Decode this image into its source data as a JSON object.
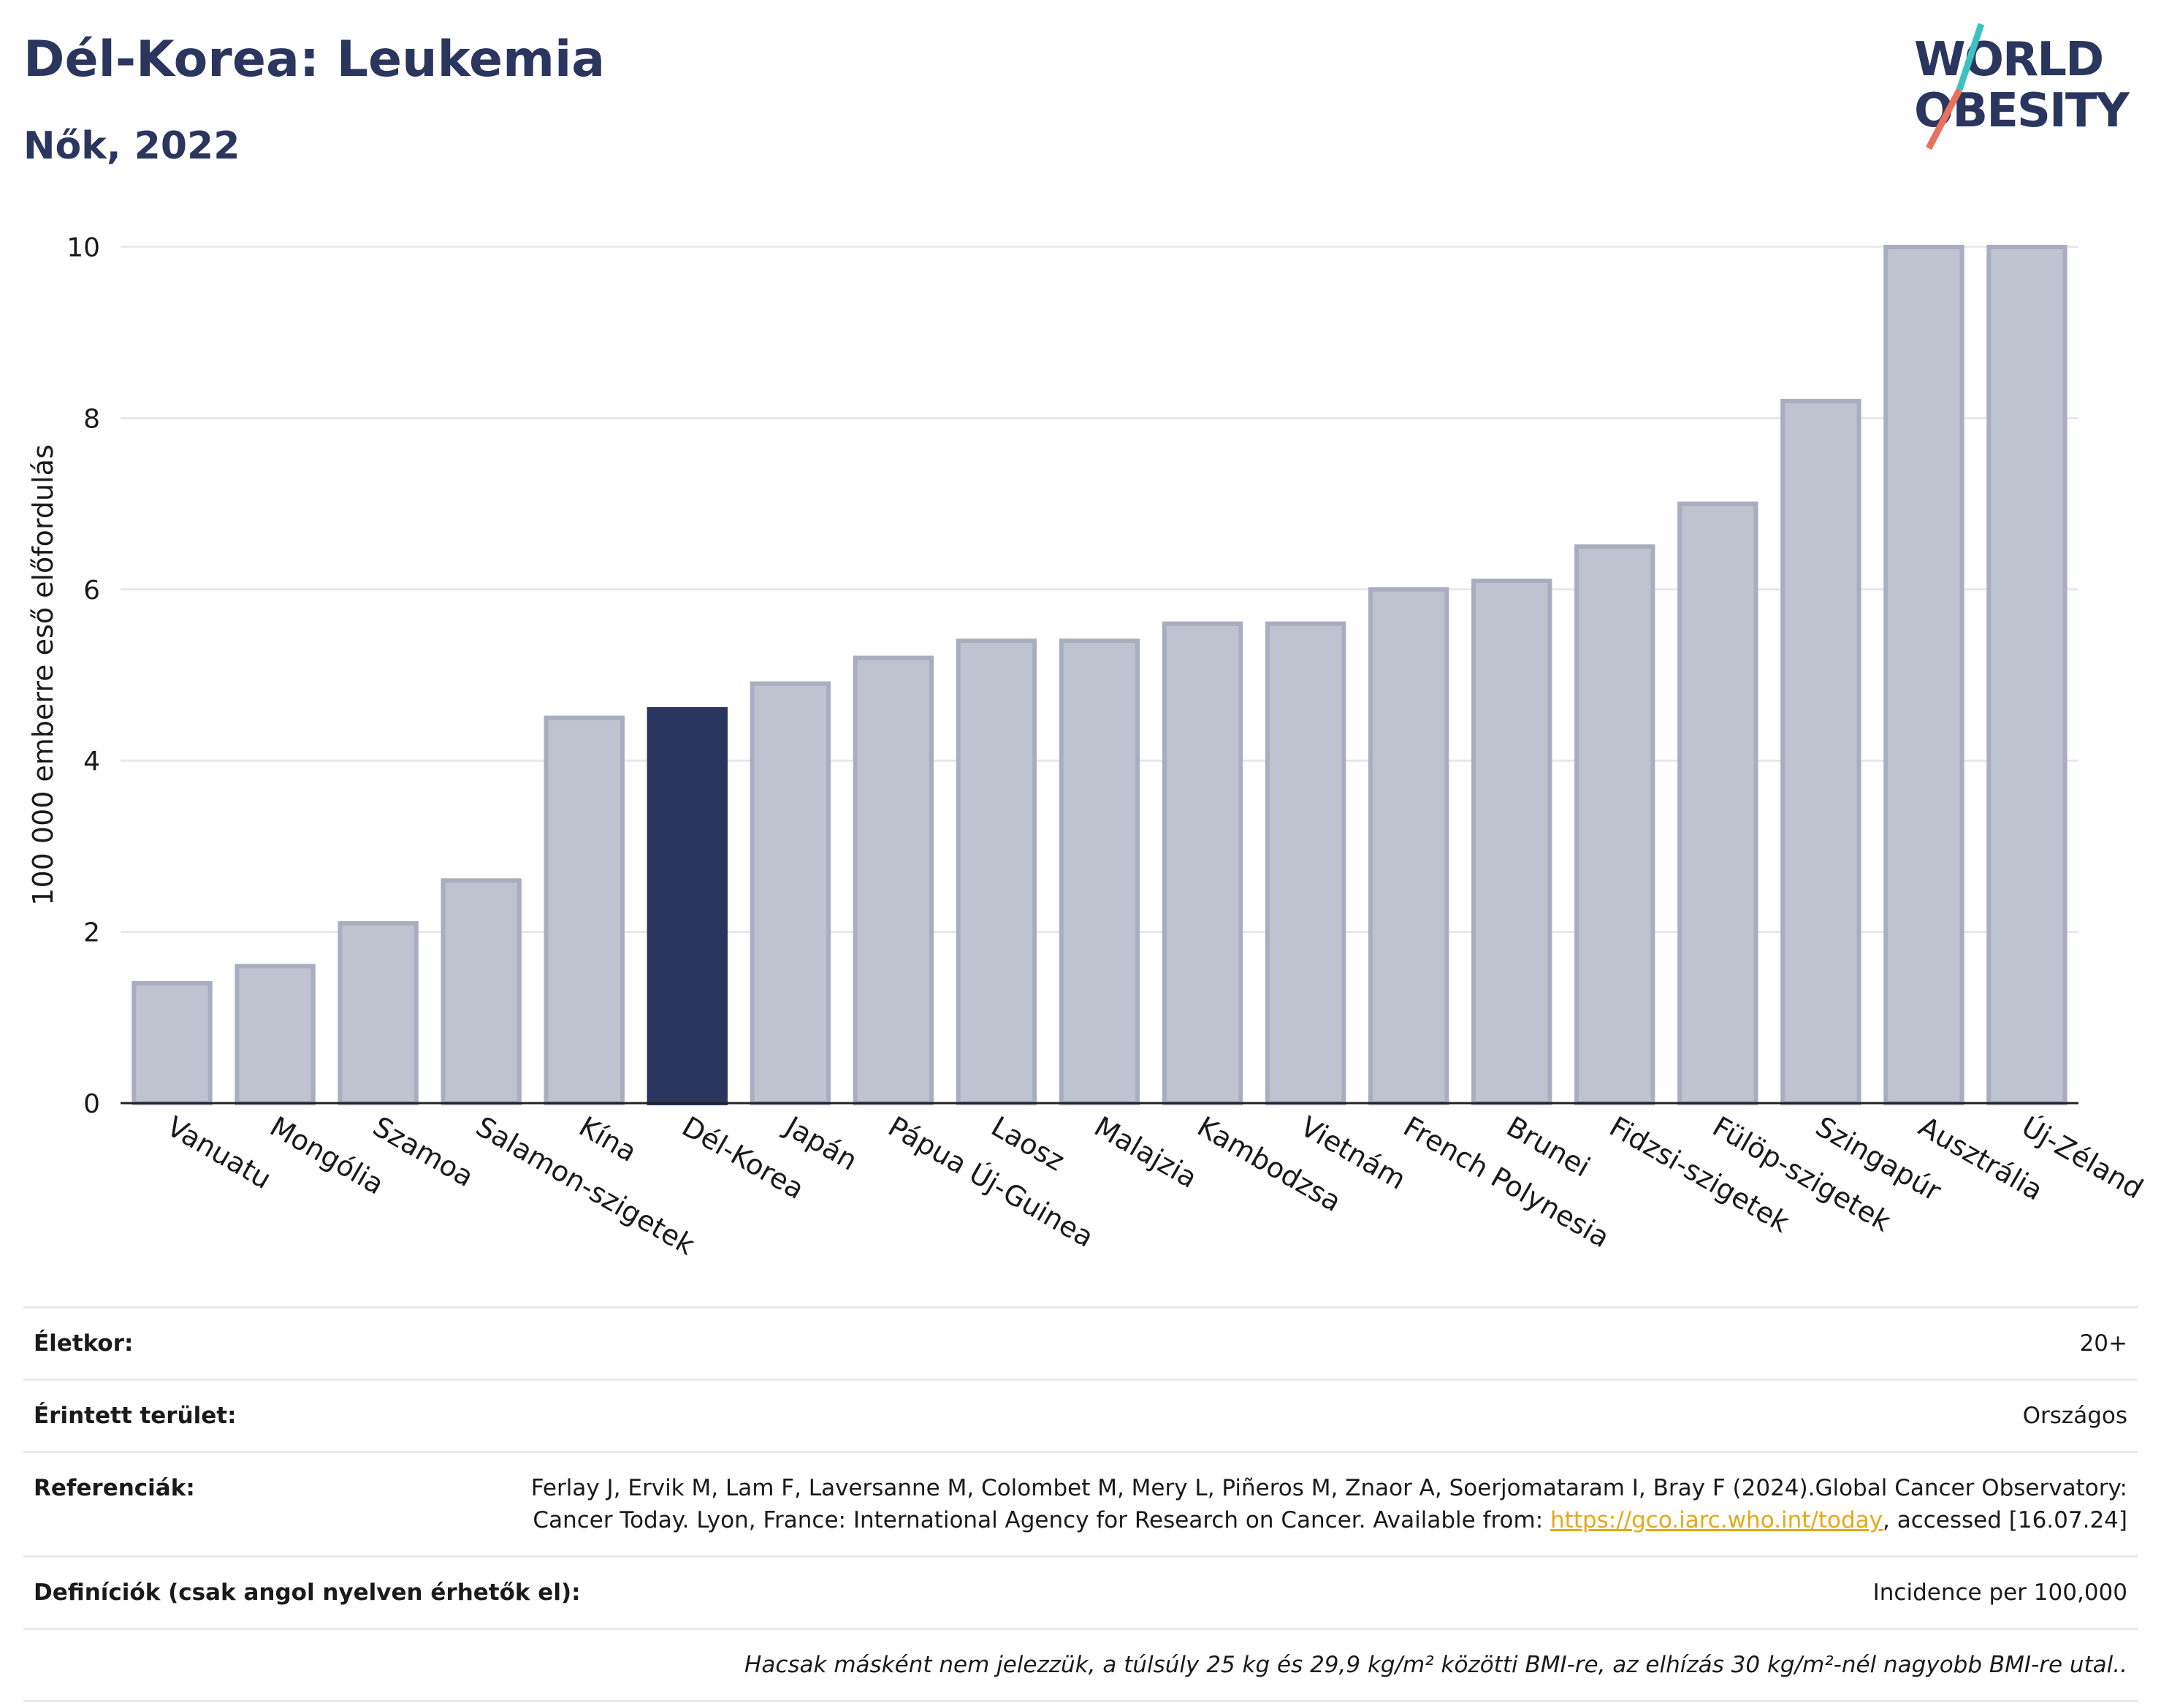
{
  "header": {
    "title": "Dél-Korea: Leukemia",
    "subtitle": "Nők, 2022"
  },
  "logo": {
    "line1": "WORLD",
    "line2": "OBESITY"
  },
  "colors": {
    "highlight": "#2b365f",
    "bar": "#bfc3d0",
    "bar_border": "#a9adc0",
    "text": "#2b365f"
  },
  "chart_data": {
    "type": "bar",
    "categories": [
      "Vanuatu",
      "Mongólia",
      "Szamoa",
      "Salamon-szigetek",
      "Kína",
      "Dél-Korea",
      "Japán",
      "Pápua Új-Guinea",
      "Laosz",
      "Malajzia",
      "Kambodzsa",
      "Vietnám",
      "French Polynesia",
      "Brunei",
      "Fidzsi-szigetek",
      "Fülöp-szigetek",
      "Szingapúr",
      "Ausztrália",
      "Új-Zéland"
    ],
    "values": [
      1.4,
      1.6,
      2.1,
      2.6,
      4.5,
      4.6,
      4.9,
      5.2,
      5.4,
      5.4,
      5.6,
      5.6,
      6.0,
      6.1,
      6.5,
      7.0,
      8.2,
      10.0,
      10.0
    ],
    "highlight": "Dél-Korea",
    "ylabel": "100 000 emberre eső előfordulás",
    "ylim": [
      0,
      10
    ],
    "yticks": [
      0,
      2,
      4,
      6,
      8,
      10
    ],
    "grid": true
  },
  "meta": {
    "age_label": "Életkor:",
    "age_value": "20+",
    "area_label": "Érintett terület:",
    "area_value": "Országos",
    "ref_label": "Referenciák:",
    "ref_text_1": "Ferlay J, Ervik M, Lam F, Laversanne M, Colombet M, Mery L, Piñeros M, Znaor A, Soerjomataram I, Bray F (2024).Global Cancer Observatory: Cancer Today. Lyon, France: International Agency for Research on Cancer. Available from: ",
    "ref_link": "https://gco.iarc.who.int/today",
    "ref_text_2": ", accessed [16.07.24]",
    "def_label": "Definíciók (csak angol nyelven érhetők el):",
    "def_value": "Incidence per 100,000",
    "note": "Hacsak másként nem jelezzük, a túlsúly 25 kg és 29,9 kg/m² közötti BMI-re, az elhízás 30 kg/m²-nél nagyobb BMI-re utal.."
  }
}
